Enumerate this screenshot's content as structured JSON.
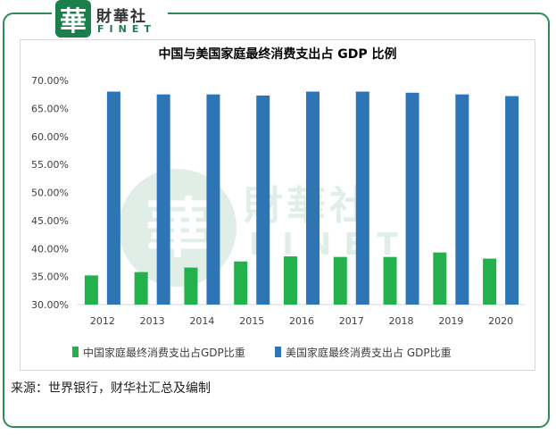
{
  "logo": {
    "glyph": "華",
    "name_cn": "財華社",
    "name_en": "FINET"
  },
  "watermark": {
    "glyph": "華",
    "name_cn": "財華社",
    "name_en": "FINET"
  },
  "source": "来源：世界银行，财华社汇总及编制",
  "colors": {
    "china_series": "#22b14c",
    "us_series": "#2e75b6",
    "brand": "#1a7f4b"
  },
  "chart_data": {
    "type": "bar",
    "title": "中国与美国家庭最终消费支出占 GDP 比例",
    "categories": [
      "2012",
      "2013",
      "2014",
      "2015",
      "2016",
      "2017",
      "2018",
      "2019",
      "2020"
    ],
    "series": [
      {
        "name": "中国家庭最终消费支出占GDP比重",
        "values": [
          35.2,
          35.8,
          36.6,
          37.7,
          38.6,
          38.5,
          38.5,
          39.3,
          38.2
        ]
      },
      {
        "name": "美国家庭最终消费支出占 GDP比重",
        "values": [
          68.0,
          67.5,
          67.5,
          67.3,
          68.0,
          68.0,
          67.8,
          67.5,
          67.2
        ]
      }
    ],
    "ylim": [
      30,
      70
    ],
    "yticks": [
      "30.00%",
      "35.00%",
      "40.00%",
      "45.00%",
      "50.00%",
      "55.00%",
      "60.00%",
      "65.00%",
      "70.00%"
    ],
    "xlabel": "",
    "ylabel": "",
    "legend_position": "bottom",
    "grid": false
  }
}
